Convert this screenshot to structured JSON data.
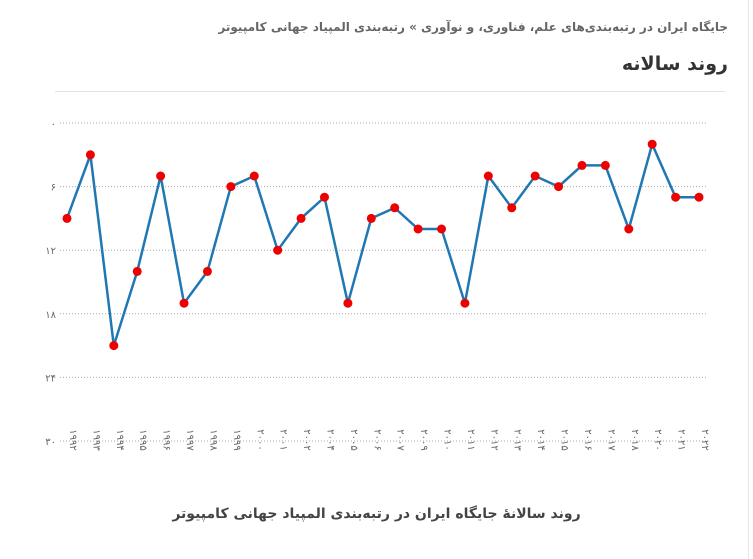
{
  "header": {
    "breadcrumb": "جایگاه ایران در رتبه‌بندی‌های علم، فناوری، و نوآوری »  رتبه‌بندی المپیاد جهانی کامپیوتر",
    "title": "روند سالانه"
  },
  "chart_data": {
    "type": "line",
    "caption": "روند سالانۀ جایگاه ایران در رتبه‌بندی المپیاد جهانی کامپیوتر",
    "x": [
      "۱۹۹۲",
      "۱۹۹۳",
      "۱۹۹۴",
      "۱۹۹۵",
      "۱۹۹۶",
      "۱۹۹۷",
      "۱۹۹۸",
      "۱۹۹۹",
      "۲۰۰۰",
      "۲۰۰۱",
      "۲۰۰۲",
      "۲۰۰۴",
      "۲۰۰۵",
      "۲۰۰۶",
      "۲۰۰۷",
      "۲۰۰۹",
      "۲۰۱۰",
      "۲۰۱۱",
      "۲۰۱۲",
      "۲۰۱۳",
      "۲۰۱۴",
      "۲۰۱۵",
      "۲۰۱۶",
      "۲۰۱۷",
      "۲۰۱۸",
      "۲۰۲۰",
      "۲۰۲۱",
      "۲۰۲۲"
    ],
    "values": [
      9,
      3,
      21,
      14,
      5,
      17,
      14,
      6,
      5,
      12,
      9,
      7,
      17,
      9,
      8,
      10,
      10,
      17,
      5,
      8,
      5,
      6,
      4,
      4,
      10,
      2,
      7,
      7
    ],
    "ylim": [
      0,
      30
    ],
    "y_inverted": true,
    "yticks": [
      0,
      6,
      12,
      18,
      24,
      30
    ],
    "ytick_labels": [
      "۰",
      "۶",
      "۱۲",
      "۱۸",
      "۲۴",
      "۳۰"
    ],
    "grid": true,
    "colors": {
      "line": "#1f77b4",
      "marker": "#ee0000",
      "grid": "#aaaaaa"
    }
  }
}
